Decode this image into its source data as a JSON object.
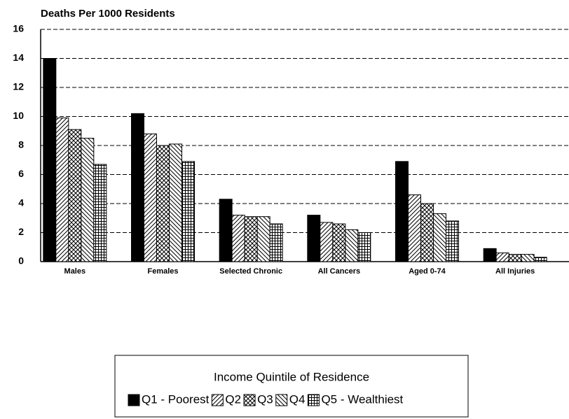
{
  "chart_data": {
    "type": "bar",
    "title": "Deaths Per 1000 Residents",
    "categories": [
      "Males",
      "Females",
      "Selected Chronic",
      "All Cancers",
      "Aged 0-74",
      "All Injuries"
    ],
    "series": [
      {
        "name": "Q1 - Poorest",
        "color": "#000000",
        "pattern": "solid",
        "values": [
          14.0,
          10.2,
          4.3,
          3.2,
          6.9,
          0.9
        ]
      },
      {
        "name": "Q2",
        "color": "#000000",
        "pattern": "diagonal",
        "values": [
          9.9,
          8.8,
          3.2,
          2.7,
          4.6,
          0.6
        ]
      },
      {
        "name": "Q3",
        "color": "#000000",
        "pattern": "crosshatch",
        "values": [
          9.1,
          8.0,
          3.1,
          2.6,
          4.0,
          0.5
        ]
      },
      {
        "name": "Q4",
        "color": "#000000",
        "pattern": "backdiagonal",
        "values": [
          8.5,
          8.1,
          3.1,
          2.2,
          3.3,
          0.5
        ]
      },
      {
        "name": "Q5 - Wealthiest",
        "color": "#000000",
        "pattern": "grid",
        "values": [
          6.7,
          6.9,
          2.6,
          2.0,
          2.8,
          0.3
        ]
      }
    ],
    "legend_title": "Income Quintile of Residence",
    "legend": "bottom",
    "ylim": [
      0,
      16
    ],
    "yticks": [
      0,
      2,
      4,
      6,
      8,
      10,
      12,
      14,
      16
    ],
    "grid": true
  }
}
